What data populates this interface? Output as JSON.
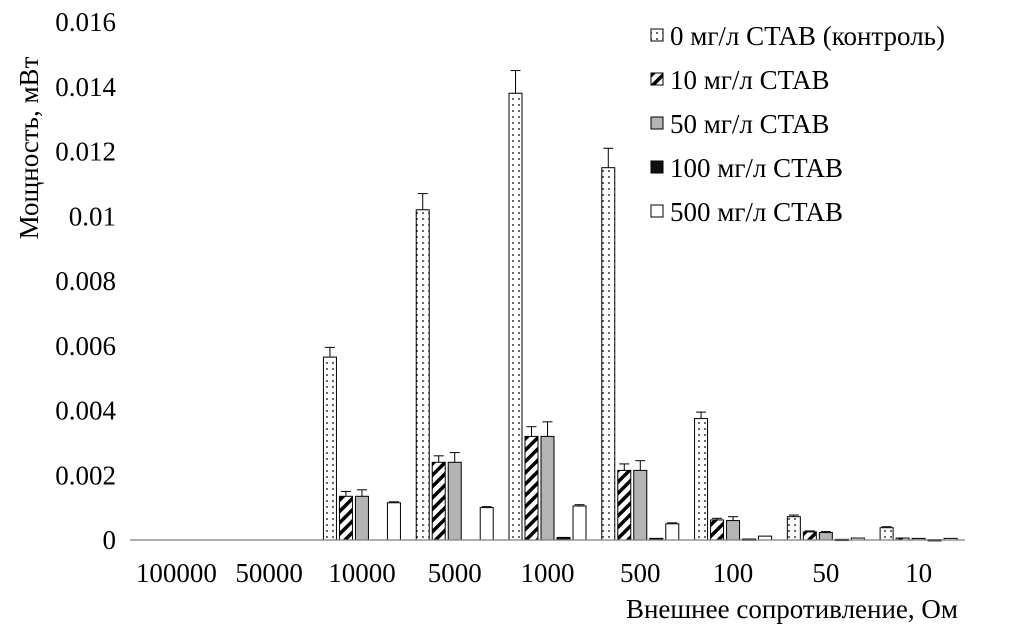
{
  "chart_data": {
    "type": "bar",
    "ylabel": "Мощность, мВт",
    "xlabel": "Внешнее сопротивление, Ом",
    "ylim": [
      0,
      0.016
    ],
    "yticks": [
      "0",
      "0.002",
      "0.004",
      "0.006",
      "0.008",
      "0.01",
      "0.012",
      "0.014",
      "0.016"
    ],
    "categories": [
      "100000",
      "50000",
      "10000",
      "5000",
      "1000",
      "500",
      "100",
      "50",
      "10"
    ],
    "grid": false,
    "legend_position": "top-right",
    "series": [
      {
        "name": "0 мг/л CTAB (контроль)",
        "pattern": "dots",
        "values": [
          0,
          0,
          0.00565,
          0.0102,
          0.0138,
          0.0115,
          0.00375,
          0.00072,
          0.00038
        ],
        "errors": [
          0,
          0,
          0.0003,
          0.0005,
          0.0007,
          0.0006,
          0.0002,
          5e-05,
          3e-05
        ]
      },
      {
        "name": "10 мг/л CTAB",
        "pattern": "diagonal-stripes",
        "values": [
          0,
          0,
          0.00135,
          0.0024,
          0.0032,
          0.00215,
          0.00062,
          0.00025,
          6e-05
        ],
        "errors": [
          0,
          0,
          0.00015,
          0.0002,
          0.0003,
          0.0002,
          5e-05,
          3e-05,
          1e-05
        ]
      },
      {
        "name": "50 мг/л CTAB",
        "pattern": "gray",
        "values": [
          0,
          0,
          0.00135,
          0.0024,
          0.0032,
          0.00215,
          0.0006,
          0.00023,
          5e-05
        ],
        "errors": [
          0,
          0,
          0.0002,
          0.0003,
          0.00045,
          0.0003,
          0.00012,
          3e-05,
          1e-05
        ]
      },
      {
        "name": "100 мг/л CTAB",
        "pattern": "black",
        "values": [
          0,
          0,
          0,
          0,
          8e-05,
          5e-05,
          3e-05,
          2e-05,
          1e-05
        ],
        "errors": [
          0,
          0,
          0,
          0,
          0,
          0,
          0,
          0,
          0
        ]
      },
      {
        "name": "500 мг/л CTAB",
        "pattern": "white",
        "values": [
          0,
          0,
          0.00115,
          0.001,
          0.00105,
          0.0005,
          0.00012,
          6e-05,
          5e-05
        ],
        "errors": [
          0,
          0,
          3e-05,
          3e-05,
          4e-05,
          3e-05,
          1e-05,
          1e-05,
          1e-05
        ]
      }
    ],
    "colors": {
      "axis": "#7f7f7f",
      "bar_stroke": "#000000",
      "gray_fill": "#b4b4b4",
      "black_fill": "#111111"
    }
  }
}
